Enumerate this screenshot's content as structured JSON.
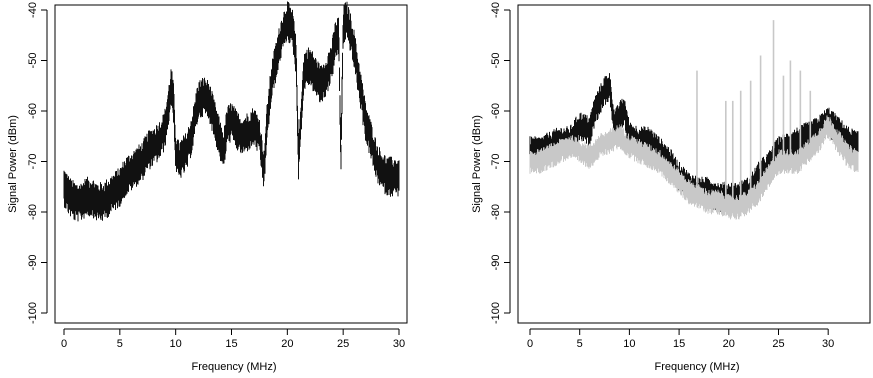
{
  "chart_data": [
    {
      "type": "line",
      "xlabel": "Frequency (MHz)",
      "ylabel": "Signal Power (dBm)",
      "xlim": [
        0,
        30
      ],
      "ylim": [
        -100,
        -40
      ],
      "xticks": [
        0,
        5,
        10,
        15,
        20,
        25,
        30
      ],
      "yticks": [
        -40,
        -50,
        -60,
        -70,
        -80,
        -90,
        -100
      ],
      "grid": false,
      "series": [
        {
          "color": "#111111",
          "band_width_dbm": 4,
          "x": [
            0,
            0.5,
            1,
            1.5,
            2,
            2.5,
            3,
            3.5,
            4,
            4.5,
            5,
            5.5,
            6,
            6.5,
            7,
            7.5,
            8,
            8.5,
            9,
            9.3,
            9.6,
            9.8,
            10,
            10.3,
            10.6,
            11,
            11.5,
            12,
            12.5,
            13,
            13.5,
            14,
            14.3,
            14.6,
            15,
            15.5,
            16,
            16.5,
            17,
            17.5,
            17.9,
            18.2,
            18.6,
            19,
            19.5,
            20,
            20.5,
            20.8,
            21,
            21.2,
            21.5,
            22,
            22.5,
            23,
            23.5,
            24,
            24.3,
            24.6,
            24.8,
            25,
            25.3,
            25.6,
            26,
            26.5,
            27,
            27.5,
            28,
            28.5,
            29,
            29.5,
            30
          ],
          "y": [
            -75,
            -77,
            -78,
            -78,
            -77,
            -77,
            -78,
            -78,
            -77,
            -76,
            -75,
            -73,
            -72,
            -71,
            -70,
            -68,
            -67,
            -66,
            -64,
            -60,
            -55,
            -58,
            -68,
            -70,
            -69,
            -68,
            -64,
            -58,
            -57,
            -58,
            -62,
            -66,
            -68,
            -63,
            -62,
            -64,
            -65,
            -64,
            -63,
            -65,
            -72,
            -62,
            -54,
            -50,
            -45,
            -42,
            -44,
            -50,
            -70,
            -62,
            -52,
            -51,
            -53,
            -55,
            -53,
            -50,
            -46,
            -45,
            -70,
            -43,
            -42,
            -44,
            -48,
            -55,
            -62,
            -66,
            -70,
            -72,
            -73,
            -73,
            -73
          ]
        }
      ]
    },
    {
      "type": "line",
      "xlabel": "Frequency (MHz)",
      "ylabel": "Signal Power (dBm)",
      "xlim": [
        0,
        33
      ],
      "ylim": [
        -100,
        -40
      ],
      "xticks": [
        0,
        5,
        10,
        15,
        20,
        25,
        30
      ],
      "yticks": [
        -40,
        -50,
        -60,
        -70,
        -80,
        -90,
        -100
      ],
      "grid": false,
      "series": [
        {
          "color": "#111111",
          "band_width_dbm": 3,
          "x": [
            0,
            1,
            2,
            3,
            4,
            5,
            6,
            6.5,
            7,
            7.5,
            8,
            8.5,
            9,
            9.5,
            10,
            11,
            12,
            13,
            14,
            15,
            16,
            17,
            18,
            19,
            20,
            21,
            22,
            23,
            24,
            25,
            26,
            27,
            28,
            29,
            30,
            31,
            32,
            33
          ],
          "y": [
            -68,
            -68,
            -67,
            -66,
            -66,
            -63,
            -64,
            -60,
            -58,
            -56,
            -55,
            -63,
            -61,
            -60,
            -65,
            -66,
            -66,
            -68,
            -70,
            -73,
            -75,
            -76,
            -76,
            -77,
            -77,
            -77,
            -76,
            -73,
            -71,
            -68,
            -67,
            -66,
            -65,
            -64,
            -62,
            -64,
            -66,
            -67
          ]
        },
        {
          "color": "#c8c8c8",
          "band_width_dbm": 2.5,
          "x": [
            0,
            1,
            2,
            3,
            4,
            5,
            6,
            7,
            8,
            9,
            10,
            11,
            12,
            13,
            14,
            15,
            16,
            17,
            18,
            19,
            20,
            21,
            22,
            23,
            24,
            25,
            26,
            27,
            28,
            29,
            30,
            31,
            32,
            33
          ],
          "y": [
            -70,
            -70,
            -69,
            -68,
            -67,
            -68,
            -69,
            -67,
            -66,
            -65,
            -67,
            -68,
            -69,
            -70,
            -72,
            -74,
            -76,
            -77,
            -78,
            -78,
            -79,
            -79,
            -78,
            -76,
            -73,
            -70,
            -70,
            -70,
            -68,
            -66,
            -63,
            -66,
            -69,
            -70
          ],
          "spikes": [
            [
              16.8,
              -52
            ],
            [
              19.7,
              -58
            ],
            [
              20.4,
              -58
            ],
            [
              21.2,
              -56
            ],
            [
              22.2,
              -54
            ],
            [
              23.2,
              -49
            ],
            [
              24.5,
              -42
            ],
            [
              25.5,
              -53
            ],
            [
              26.2,
              -50
            ],
            [
              27.2,
              -52
            ],
            [
              28.2,
              -56
            ]
          ]
        }
      ]
    }
  ]
}
